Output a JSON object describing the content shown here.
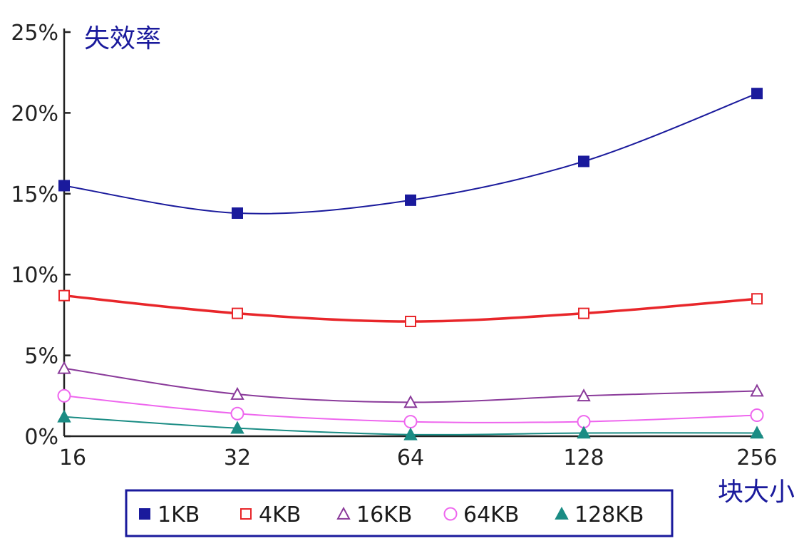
{
  "chart_data": {
    "type": "line",
    "title": "",
    "ylabel": "失效率",
    "xlabel": "块大小",
    "categories": [
      "16",
      "32",
      "64",
      "128",
      "256"
    ],
    "yticks": [
      "0%",
      "5%",
      "10%",
      "15%",
      "20%",
      "25%"
    ],
    "ylim": [
      0,
      25
    ],
    "grid": false,
    "legend_position": "bottom",
    "series": [
      {
        "name": "1KB",
        "values": [
          15.5,
          13.8,
          14.6,
          17.0,
          21.2
        ],
        "color": "#1a1a9c",
        "marker": "filled-square"
      },
      {
        "name": "4KB",
        "values": [
          8.7,
          7.6,
          7.1,
          7.6,
          8.5
        ],
        "color": "#e8262a",
        "marker": "open-square"
      },
      {
        "name": "16KB",
        "values": [
          4.2,
          2.6,
          2.1,
          2.5,
          2.8
        ],
        "color": "#8a3a9a",
        "marker": "open-triangle"
      },
      {
        "name": "64KB",
        "values": [
          2.5,
          1.4,
          0.9,
          0.9,
          1.3
        ],
        "color": "#ee66ee",
        "marker": "open-circle"
      },
      {
        "name": "128KB",
        "values": [
          1.2,
          0.5,
          0.1,
          0.2,
          0.2
        ],
        "color": "#1a8c84",
        "marker": "filled-triangle"
      }
    ]
  }
}
